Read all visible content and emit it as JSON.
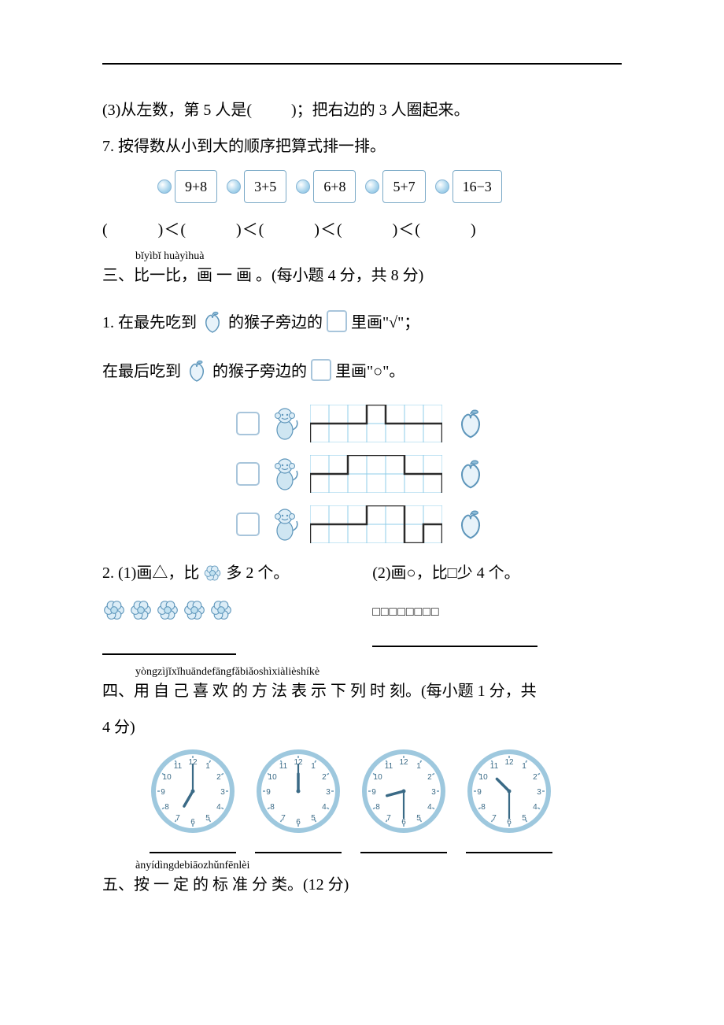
{
  "colors": {
    "text": "#000000",
    "accent_blue": "#8fbdd8",
    "accent_blue_dark": "#5e96bb",
    "grid_line": "#8fcce8",
    "path_line": "#2a2a2a",
    "clock_rim": "#9ec8de",
    "clock_face": "#ffffff"
  },
  "typography": {
    "body_fontsize_pt": 15,
    "ruby_fontsize_pt": 10
  },
  "q6_3": {
    "text_a": "(3)从左数，第 5 人是(",
    "text_b": ")；把右边的 3 人圈起来。"
  },
  "q7": {
    "intro": "7. 按得数从小到大的顺序把算式排一排。",
    "chips": [
      "9+8",
      "3+5",
      "6+8",
      "5+7",
      "16−3"
    ],
    "paren_row": "(　　　)＜(　　　)＜(　　　)＜(　　　)＜(　　　)"
  },
  "sec3": {
    "pinyin": "bǐyìbǐ huàyìhuà",
    "heading": "三、比一比，画 一 画 。(每小题 4 分，共 8 分)",
    "q1a_pre": "1. 在最先吃到",
    "q1a_mid": "的猴子旁边的",
    "q1a_post": "里画\"√\"；",
    "q1b_pre": "在最后吃到",
    "q1b_mid": "的猴子旁边的",
    "q1b_post": "里画\"○\"。",
    "maze": {
      "type": "grid-maze",
      "grid_cols": 7,
      "grid_rows": 2,
      "cell": 24,
      "line_color": "#8fcce8",
      "path_color": "#2a2a2a",
      "path_width": 2.5,
      "rows": [
        {
          "path": [
            [
              0,
              48
            ],
            [
              0,
              24
            ],
            [
              72,
              24
            ],
            [
              72,
              0
            ],
            [
              96,
              0
            ],
            [
              96,
              24
            ],
            [
              168,
              24
            ],
            [
              168,
              48
            ]
          ]
        },
        {
          "path": [
            [
              0,
              48
            ],
            [
              0,
              24
            ],
            [
              48,
              24
            ],
            [
              48,
              0
            ],
            [
              120,
              0
            ],
            [
              120,
              24
            ],
            [
              168,
              24
            ],
            [
              168,
              48
            ]
          ]
        },
        {
          "path": [
            [
              0,
              48
            ],
            [
              0,
              24
            ],
            [
              72,
              24
            ],
            [
              72,
              0
            ],
            [
              120,
              0
            ],
            [
              120,
              48
            ],
            [
              144,
              48
            ],
            [
              144,
              24
            ],
            [
              168,
              24
            ],
            [
              168,
              48
            ]
          ]
        }
      ]
    },
    "q2a": "2. (1)画△，比",
    "q2a_tail": "多 2 个。",
    "q2a_flowers": 5,
    "q2b": "(2)画○，比□少 4 个。",
    "q2b_squares": 8
  },
  "sec4": {
    "pinyin": "yòngzìjǐxǐhuāndefāngfǎbiǎoshìxiàlièshíkè",
    "heading": "四、用 自 己 喜 欢 的 方 法 表 示 下 列 时 刻。(每小题 1 分，共",
    "heading_tail": "4 分)",
    "clocks": [
      {
        "hour": 7,
        "minute": 0
      },
      {
        "hour": 12,
        "minute": 0
      },
      {
        "hour": 8,
        "minute": 30
      },
      {
        "hour": 10,
        "minute": 30
      }
    ],
    "clock_style": {
      "rim_color": "#9ec8de",
      "rim_width": 6,
      "face_color": "#ffffff",
      "number_color": "#3a6a86",
      "hand_color": "#3a6a86",
      "tick_color": "#6a98b4"
    }
  },
  "sec5": {
    "pinyin": "ànyídìngdebiāozhǔnfēnlèi",
    "heading": "五、按 一 定 的 标 准 分 类。(12 分)"
  }
}
